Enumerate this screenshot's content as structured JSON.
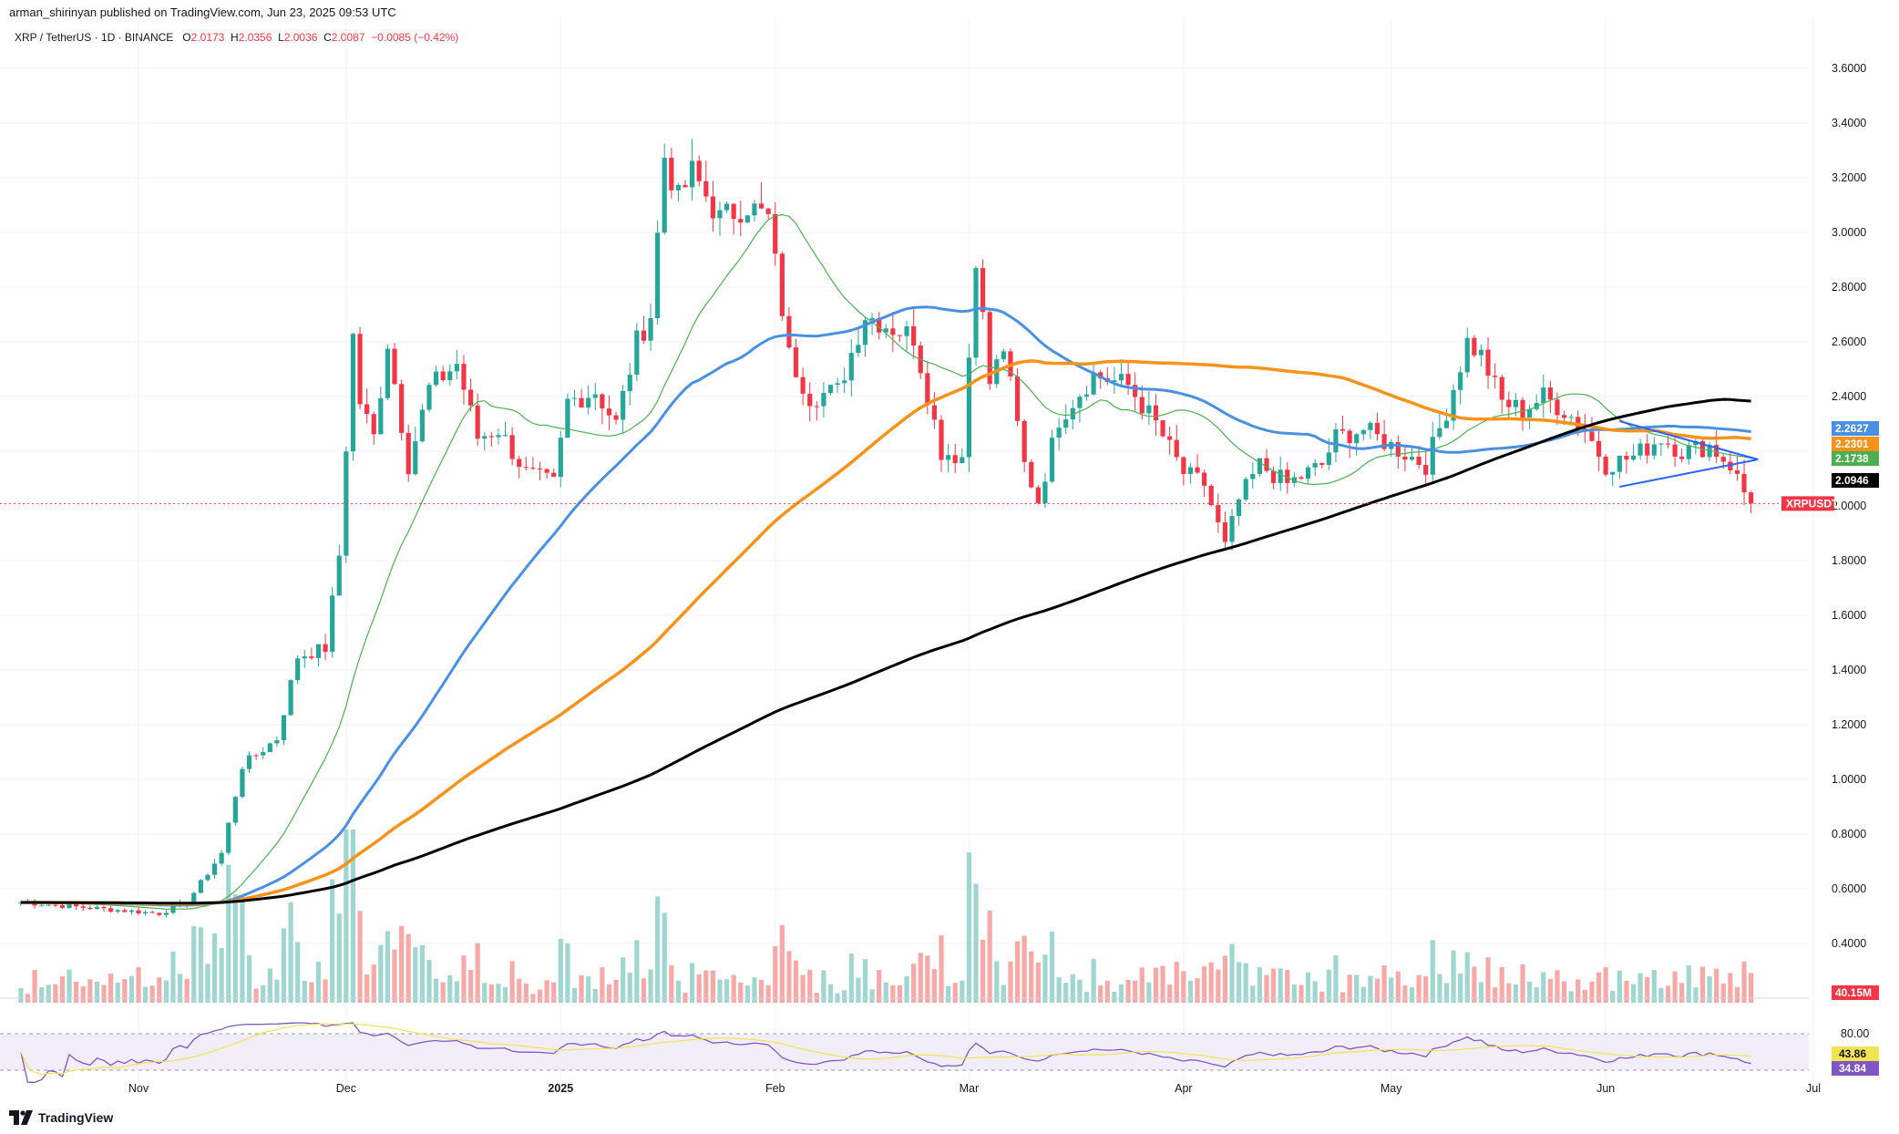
{
  "header": {
    "publisher": "arman_shirinyan published on TradingView.com, Jun 23, 2025 09:53 UTC"
  },
  "symbol": {
    "name": "XRP / TetherUS · 1D · BINANCE",
    "o_label": "O",
    "o": "2.0173",
    "h_label": "H",
    "h": "2.0356",
    "l_label": "L",
    "l": "2.0036",
    "c_label": "C",
    "c": "2.0087",
    "change": "−0.0085 (−0.42%)"
  },
  "footer": {
    "brand": "TradingView"
  },
  "colors": {
    "up": "#26a69a",
    "down": "#f23645",
    "ma20": "#4caf50",
    "ma50": "#4a90e2",
    "ma100": "#f7931a",
    "ma200": "#000000",
    "rsi": "#7e57c2",
    "rsi_ma": "#f2e352",
    "triangle": "#2962ff"
  },
  "chart_data": {
    "type": "candlestick",
    "timeframe": "1D",
    "x_ticks": [
      "Nov",
      "Dec",
      "2025",
      "Feb",
      "Mar",
      "Apr",
      "May",
      "Jun",
      "Jul"
    ],
    "y_ticks": [
      "3.6000",
      "3.4000",
      "3.2000",
      "3.0000",
      "2.8000",
      "2.6000",
      "2.4000",
      "2.2000",
      "2.0000",
      "1.8000",
      "1.6000",
      "1.4000",
      "1.2000",
      "1.0000",
      "0.8000",
      "0.6000",
      "0.4000"
    ],
    "ylim": [
      0.36,
      3.72
    ],
    "last_price": 2.0087,
    "price_tag": "XRPUSDT",
    "ma_tags": [
      {
        "value": "2.2627",
        "color": "#4a90e2"
      },
      {
        "value": "2.2301",
        "color": "#f7931a"
      },
      {
        "value": "2.1738",
        "color": "#4caf50"
      },
      {
        "value": "2.0946",
        "color": "#000000"
      }
    ],
    "volume_tag": "40.15M",
    "rsi_ticks": [
      "80.00"
    ],
    "rsi_tags": [
      {
        "value": "43.86",
        "color": "#f2e352"
      },
      {
        "value": "34.84",
        "color": "#7e57c2"
      }
    ],
    "keypoints": [
      {
        "date": "2024-10-15",
        "close": 0.55
      },
      {
        "date": "2024-11-04",
        "close": 0.51
      },
      {
        "date": "2024-11-08",
        "close": 0.55
      },
      {
        "date": "2024-11-13",
        "close": 0.73
      },
      {
        "date": "2024-11-16",
        "close": 1.05
      },
      {
        "date": "2024-11-21",
        "close": 1.15
      },
      {
        "date": "2024-11-24",
        "close": 1.45
      },
      {
        "date": "2024-11-28",
        "close": 1.48
      },
      {
        "date": "2024-11-30",
        "close": 1.82
      },
      {
        "date": "2024-12-02",
        "close": 2.62
      },
      {
        "date": "2024-12-03",
        "close": 2.38
      },
      {
        "date": "2024-12-05",
        "close": 2.25
      },
      {
        "date": "2024-12-07",
        "close": 2.6
      },
      {
        "date": "2024-12-10",
        "close": 2.15
      },
      {
        "date": "2024-12-13",
        "close": 2.43
      },
      {
        "date": "2024-12-17",
        "close": 2.52
      },
      {
        "date": "2024-12-20",
        "close": 2.25
      },
      {
        "date": "2024-12-23",
        "close": 2.28
      },
      {
        "date": "2024-12-27",
        "close": 2.12
      },
      {
        "date": "2024-12-31",
        "close": 2.08
      },
      {
        "date": "2025-01-02",
        "close": 2.38
      },
      {
        "date": "2025-01-06",
        "close": 2.42
      },
      {
        "date": "2025-01-09",
        "close": 2.3
      },
      {
        "date": "2025-01-12",
        "close": 2.6
      },
      {
        "date": "2025-01-14",
        "close": 2.7
      },
      {
        "date": "2025-01-16",
        "close": 3.28
      },
      {
        "date": "2025-01-18",
        "close": 3.12
      },
      {
        "date": "2025-01-20",
        "close": 3.22
      },
      {
        "date": "2025-01-24",
        "close": 3.05
      },
      {
        "date": "2025-01-28",
        "close": 3.1
      },
      {
        "date": "2025-01-31",
        "close": 3.05
      },
      {
        "date": "2025-02-02",
        "close": 2.72
      },
      {
        "date": "2025-02-03",
        "close": 2.55
      },
      {
        "date": "2025-02-06",
        "close": 2.4
      },
      {
        "date": "2025-02-10",
        "close": 2.42
      },
      {
        "date": "2025-02-14",
        "close": 2.7
      },
      {
        "date": "2025-02-18",
        "close": 2.65
      },
      {
        "date": "2025-02-21",
        "close": 2.62
      },
      {
        "date": "2025-02-25",
        "close": 2.2
      },
      {
        "date": "2025-02-28",
        "close": 2.18
      },
      {
        "date": "2025-03-02",
        "close": 2.92
      },
      {
        "date": "2025-03-04",
        "close": 2.45
      },
      {
        "date": "2025-03-06",
        "close": 2.58
      },
      {
        "date": "2025-03-09",
        "close": 2.15
      },
      {
        "date": "2025-03-11",
        "close": 2.02
      },
      {
        "date": "2025-03-14",
        "close": 2.32
      },
      {
        "date": "2025-03-19",
        "close": 2.48
      },
      {
        "date": "2025-03-24",
        "close": 2.44
      },
      {
        "date": "2025-03-28",
        "close": 2.3
      },
      {
        "date": "2025-04-01",
        "close": 2.12
      },
      {
        "date": "2025-04-04",
        "close": 2.08
      },
      {
        "date": "2025-04-07",
        "close": 1.85
      },
      {
        "date": "2025-04-09",
        "close": 2.02
      },
      {
        "date": "2025-04-12",
        "close": 2.15
      },
      {
        "date": "2025-04-16",
        "close": 2.08
      },
      {
        "date": "2025-04-21",
        "close": 2.15
      },
      {
        "date": "2025-04-23",
        "close": 2.25
      },
      {
        "date": "2025-04-27",
        "close": 2.28
      },
      {
        "date": "2025-05-01",
        "close": 2.22
      },
      {
        "date": "2025-05-06",
        "close": 2.15
      },
      {
        "date": "2025-05-09",
        "close": 2.35
      },
      {
        "date": "2025-05-12",
        "close": 2.6
      },
      {
        "date": "2025-05-14",
        "close": 2.55
      },
      {
        "date": "2025-05-17",
        "close": 2.38
      },
      {
        "date": "2025-05-20",
        "close": 2.35
      },
      {
        "date": "2025-05-23",
        "close": 2.4
      },
      {
        "date": "2025-05-26",
        "close": 2.35
      },
      {
        "date": "2025-05-29",
        "close": 2.28
      },
      {
        "date": "2025-06-01",
        "close": 2.15
      },
      {
        "date": "2025-06-05",
        "close": 2.18
      },
      {
        "date": "2025-06-09",
        "close": 2.25
      },
      {
        "date": "2025-06-12",
        "close": 2.2
      },
      {
        "date": "2025-06-16",
        "close": 2.22
      },
      {
        "date": "2025-06-19",
        "close": 2.15
      },
      {
        "date": "2025-06-21",
        "close": 2.05
      },
      {
        "date": "2025-06-22",
        "close": 2.01
      }
    ]
  }
}
